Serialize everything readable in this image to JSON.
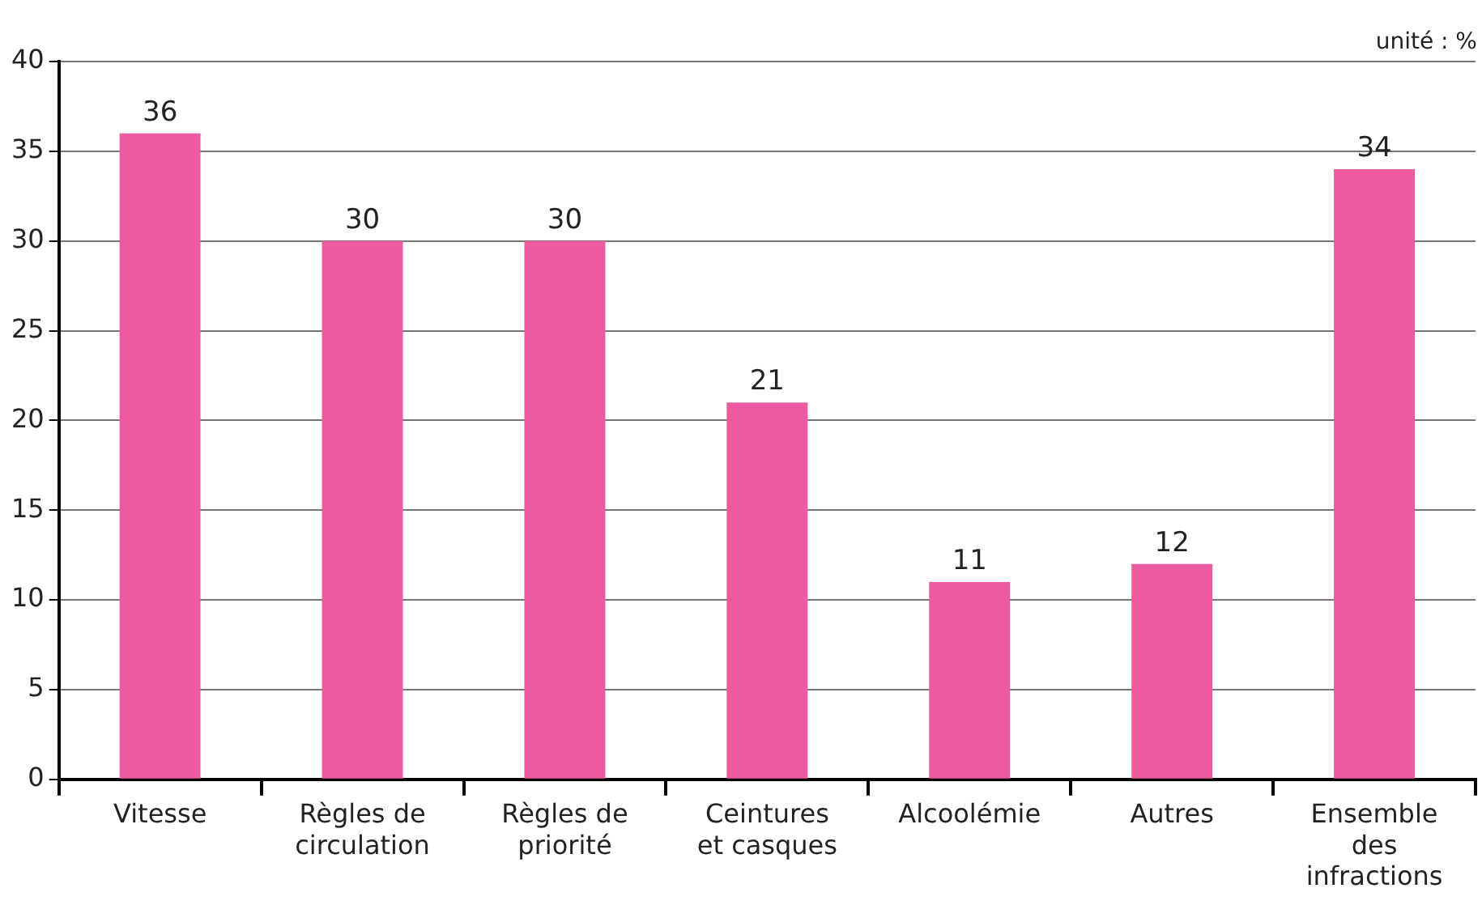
{
  "chart_data": {
    "type": "bar",
    "categories": [
      "Vitesse",
      "Règles de\ncirculation",
      "Règles de\npriorité",
      "Ceintures\net casques",
      "Alcoolémie",
      "Autres",
      "Ensemble\ndes\ninfractions"
    ],
    "values": [
      36,
      30,
      30,
      21,
      11,
      12,
      34
    ],
    "color": "#ee5aa0",
    "ylim": [
      0,
      40
    ],
    "yticks": [
      0,
      5,
      10,
      15,
      20,
      25,
      30,
      35,
      40
    ],
    "grid": "y",
    "data_labels": true,
    "annotations": [
      "unité : %"
    ]
  }
}
